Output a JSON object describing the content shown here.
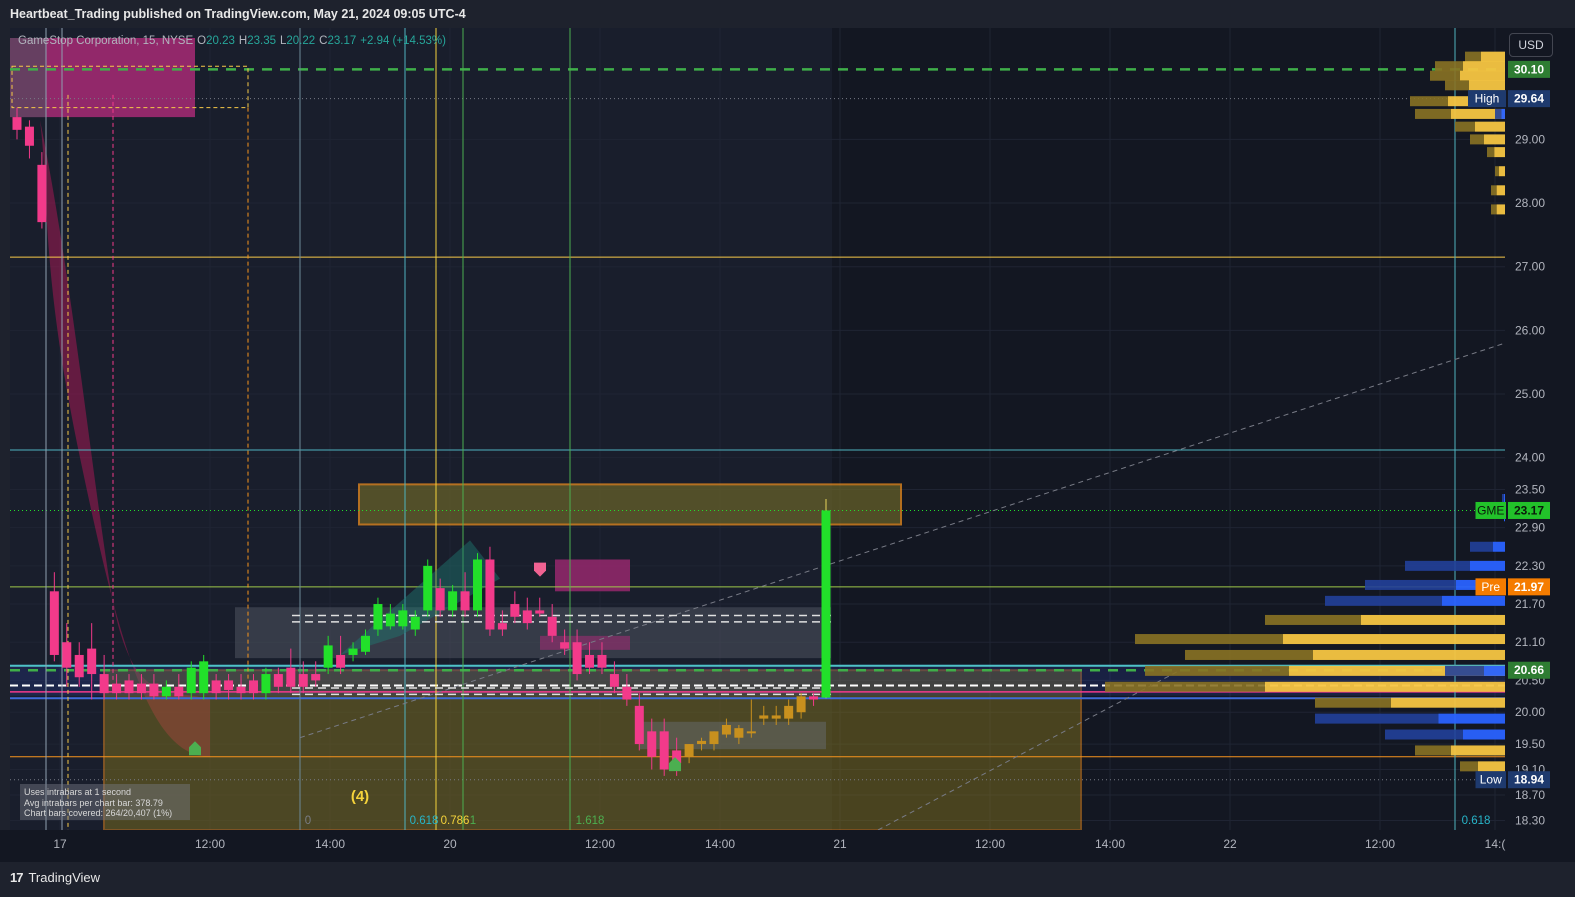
{
  "header": {
    "publisher_line": "Heartbeat_Trading published on TradingView.com, May 21, 2024 09:05 UTC-4"
  },
  "legend": {
    "symbol": "GameStop Corporation, 15, NYSE",
    "open_label": "O",
    "open": "20.23",
    "high_label": "H",
    "high": "23.35",
    "low_label": "L",
    "low": "20.22",
    "close_label": "C",
    "close": "23.17",
    "change": "+2.94 (+14.53%)"
  },
  "currency": "USD",
  "footer": {
    "brand": "TradingView",
    "brand_icon": "tradingview-logo-icon"
  },
  "info_box": {
    "line1": "Uses intrabars at 1 second",
    "line2": "Avg intrabars per chart bar: 378.79",
    "line3": "Chart bars covered: 264/20,407 (1%)"
  },
  "wave_label": "(4)",
  "colors": {
    "background": "#131722",
    "up": "#22e02a",
    "down": "#f23a8a",
    "accent_orange": "#f7941d",
    "volume_gold": "#f5c542",
    "volume_blue": "#2962ff",
    "green_dash": "#3fae49"
  },
  "chart_data": {
    "type": "candlestick",
    "interval": "15",
    "ylim": [
      18.15,
      30.75
    ],
    "y_ticks": [
      29.0,
      28.0,
      27.0,
      26.0,
      25.0,
      24.0,
      23.5,
      22.9,
      22.3,
      21.7,
      21.1,
      20.5,
      20.0,
      19.5,
      19.1,
      18.7,
      18.3
    ],
    "x_ticks": [
      "17",
      "12:00",
      "14:00",
      "20",
      "12:00",
      "14:00",
      "21",
      "12:00",
      "14:00",
      "22",
      "12:00",
      "14:("
    ],
    "price_tags": [
      {
        "label": "",
        "value": "30.10",
        "price": 30.1,
        "bg": "#2e7d32",
        "color": "#ffffff"
      },
      {
        "label": "High",
        "value": "29.64",
        "price": 29.64,
        "bg": "#1e3a6e",
        "color": "#ffffff"
      },
      {
        "label": "GME",
        "value": "23.17",
        "price": 23.17,
        "bg": "#22c22a",
        "color": "#0b1a0b"
      },
      {
        "label": "Pre",
        "value": "21.97",
        "price": 21.97,
        "bg": "#f57c00",
        "color": "#ffffff"
      },
      {
        "label": "",
        "value": "20.66",
        "price": 20.66,
        "bg": "#2e7d32",
        "color": "#ffffff"
      },
      {
        "label": "Low",
        "value": "18.94",
        "price": 18.94,
        "bg": "#1e3a6e",
        "color": "#ffffff"
      }
    ],
    "fib_labels": [
      {
        "text": "0",
        "color": "#7a7d85"
      },
      {
        "text": "0.618",
        "color": "#27b5c9"
      },
      {
        "text": "0.786",
        "color": "#f5d33b"
      },
      {
        "text": "1",
        "color": "#4caf50"
      },
      {
        "text": "1.618",
        "color": "#4caf50"
      },
      {
        "text": "0.618",
        "color": "#27b5c9"
      }
    ],
    "candles": [
      {
        "o": 29.35,
        "h": 29.5,
        "c": 29.15,
        "l": 29.0
      },
      {
        "o": 29.2,
        "h": 29.3,
        "c": 28.9,
        "l": 28.7
      },
      {
        "o": 28.6,
        "h": 28.8,
        "c": 27.7,
        "l": 27.6
      },
      {
        "o": 21.9,
        "h": 22.2,
        "c": 20.9,
        "l": 20.8
      },
      {
        "o": 21.1,
        "h": 21.4,
        "c": 20.7,
        "l": 20.4
      },
      {
        "o": 20.9,
        "h": 21.1,
        "c": 20.55,
        "l": 20.4
      },
      {
        "o": 21.0,
        "h": 21.4,
        "c": 20.6,
        "l": 20.2
      },
      {
        "o": 20.6,
        "h": 20.9,
        "c": 20.3,
        "l": 20.2
      },
      {
        "o": 20.45,
        "h": 20.6,
        "c": 20.3,
        "l": 20.2
      },
      {
        "o": 20.5,
        "h": 20.6,
        "c": 20.3,
        "l": 20.2
      },
      {
        "o": 20.45,
        "h": 20.6,
        "c": 20.3,
        "l": 20.2
      },
      {
        "o": 20.45,
        "h": 20.6,
        "c": 20.25,
        "l": 20.2
      },
      {
        "o": 20.25,
        "h": 20.5,
        "c": 20.4,
        "l": 20.2
      },
      {
        "o": 20.4,
        "h": 20.6,
        "c": 20.25,
        "l": 20.2
      },
      {
        "o": 20.3,
        "h": 20.8,
        "c": 20.7,
        "l": 20.2
      },
      {
        "o": 20.3,
        "h": 20.9,
        "c": 20.8,
        "l": 20.2
      },
      {
        "o": 20.5,
        "h": 20.6,
        "c": 20.3,
        "l": 20.2
      },
      {
        "o": 20.5,
        "h": 20.6,
        "c": 20.35,
        "l": 20.2
      },
      {
        "o": 20.4,
        "h": 20.6,
        "c": 20.3,
        "l": 20.2
      },
      {
        "o": 20.5,
        "h": 20.6,
        "c": 20.3,
        "l": 20.2
      },
      {
        "o": 20.3,
        "h": 20.7,
        "c": 20.6,
        "l": 20.2
      },
      {
        "o": 20.6,
        "h": 20.7,
        "c": 20.4,
        "l": 20.3
      },
      {
        "o": 20.7,
        "h": 21.0,
        "c": 20.4,
        "l": 20.3
      },
      {
        "o": 20.6,
        "h": 20.8,
        "c": 20.4,
        "l": 20.3
      },
      {
        "o": 20.6,
        "h": 20.8,
        "c": 20.5,
        "l": 20.4
      },
      {
        "o": 20.7,
        "h": 21.2,
        "c": 21.05,
        "l": 20.6
      },
      {
        "o": 20.9,
        "h": 21.2,
        "c": 20.7,
        "l": 20.6
      },
      {
        "o": 20.9,
        "h": 21.1,
        "c": 21.0,
        "l": 20.8
      },
      {
        "o": 20.95,
        "h": 21.3,
        "c": 21.2,
        "l": 20.9
      },
      {
        "o": 21.3,
        "h": 21.8,
        "c": 21.7,
        "l": 21.2
      },
      {
        "o": 21.35,
        "h": 21.7,
        "c": 21.55,
        "l": 21.3
      },
      {
        "o": 21.35,
        "h": 21.7,
        "c": 21.6,
        "l": 21.3
      },
      {
        "o": 21.3,
        "h": 21.6,
        "c": 21.5,
        "l": 21.2
      },
      {
        "o": 21.6,
        "h": 22.4,
        "c": 22.3,
        "l": 21.5
      },
      {
        "o": 21.95,
        "h": 22.1,
        "c": 21.6,
        "l": 21.5
      },
      {
        "o": 21.6,
        "h": 22.0,
        "c": 21.9,
        "l": 21.5
      },
      {
        "o": 21.9,
        "h": 22.2,
        "c": 21.6,
        "l": 21.5
      },
      {
        "o": 21.6,
        "h": 22.5,
        "c": 22.4,
        "l": 21.5
      },
      {
        "o": 22.4,
        "h": 22.6,
        "c": 21.3,
        "l": 21.2
      },
      {
        "o": 21.4,
        "h": 21.6,
        "c": 21.3,
        "l": 21.2
      },
      {
        "o": 21.7,
        "h": 21.9,
        "c": 21.5,
        "l": 21.4
      },
      {
        "o": 21.6,
        "h": 21.8,
        "c": 21.4,
        "l": 21.3
      },
      {
        "o": 21.6,
        "h": 21.8,
        "c": 21.55,
        "l": 21.5
      },
      {
        "o": 21.5,
        "h": 21.7,
        "c": 21.2,
        "l": 21.1
      },
      {
        "o": 21.1,
        "h": 21.3,
        "c": 21.0,
        "l": 20.9
      },
      {
        "o": 21.1,
        "h": 21.3,
        "c": 20.6,
        "l": 20.5
      },
      {
        "o": 20.9,
        "h": 21.1,
        "c": 20.7,
        "l": 20.6
      },
      {
        "o": 20.9,
        "h": 21.1,
        "c": 20.7,
        "l": 20.6
      },
      {
        "o": 20.6,
        "h": 20.8,
        "c": 20.4,
        "l": 20.3
      },
      {
        "o": 20.4,
        "h": 20.6,
        "c": 20.2,
        "l": 20.1
      },
      {
        "o": 20.1,
        "h": 20.3,
        "c": 19.5,
        "l": 19.4
      },
      {
        "o": 19.7,
        "h": 19.9,
        "c": 19.3,
        "l": 19.1
      },
      {
        "o": 19.7,
        "h": 19.9,
        "c": 19.1,
        "l": 19.0
      },
      {
        "o": 19.4,
        "h": 19.6,
        "c": 19.2,
        "l": 19.0
      },
      {
        "o": 19.3,
        "h": 19.5,
        "c": 19.5,
        "l": 19.2
      },
      {
        "o": 19.5,
        "h": 19.6,
        "c": 19.55,
        "l": 19.4
      },
      {
        "o": 19.5,
        "h": 19.7,
        "c": 19.7,
        "l": 19.4
      },
      {
        "o": 19.65,
        "h": 19.9,
        "c": 19.8,
        "l": 19.6
      },
      {
        "o": 19.6,
        "h": 19.8,
        "c": 19.75,
        "l": 19.5
      },
      {
        "o": 19.7,
        "h": 20.2,
        "c": 19.7,
        "l": 19.6
      },
      {
        "o": 19.9,
        "h": 20.1,
        "c": 19.95,
        "l": 19.8
      },
      {
        "o": 19.9,
        "h": 20.1,
        "c": 19.95,
        "l": 19.8
      },
      {
        "o": 19.9,
        "h": 20.2,
        "c": 20.1,
        "l": 19.8
      },
      {
        "o": 20.0,
        "h": 20.3,
        "c": 20.25,
        "l": 19.9
      },
      {
        "o": 20.25,
        "h": 20.3,
        "c": 20.2,
        "l": 20.1
      },
      {
        "o": 20.23,
        "h": 23.35,
        "c": 23.17,
        "l": 20.22
      }
    ],
    "volume_profile": [
      {
        "price": 30.3,
        "gold": 40,
        "blue": 0
      },
      {
        "price": 30.15,
        "gold": 70,
        "blue": 0
      },
      {
        "price": 30.0,
        "gold": 75,
        "blue": 0
      },
      {
        "price": 29.85,
        "gold": 60,
        "blue": 0
      },
      {
        "price": 29.6,
        "gold": 95,
        "blue": 20
      },
      {
        "price": 29.4,
        "gold": 90,
        "blue": 10
      },
      {
        "price": 29.2,
        "gold": 50,
        "blue": 0
      },
      {
        "price": 29.0,
        "gold": 35,
        "blue": 0
      },
      {
        "price": 28.8,
        "gold": 18,
        "blue": 0
      },
      {
        "price": 28.5,
        "gold": 10,
        "blue": 0
      },
      {
        "price": 28.2,
        "gold": 14,
        "blue": 0
      },
      {
        "price": 27.9,
        "gold": 14,
        "blue": 0
      },
      {
        "price": 23.35,
        "gold": 0,
        "blue": 3
      },
      {
        "price": 22.6,
        "gold": 0,
        "blue": 35
      },
      {
        "price": 22.3,
        "gold": 0,
        "blue": 100
      },
      {
        "price": 22.0,
        "gold": 0,
        "blue": 140
      },
      {
        "price": 21.75,
        "gold": 0,
        "blue": 180
      },
      {
        "price": 21.45,
        "gold": 240,
        "blue": 0
      },
      {
        "price": 21.15,
        "gold": 370,
        "blue": 0
      },
      {
        "price": 20.9,
        "gold": 320,
        "blue": 0
      },
      {
        "price": 20.65,
        "gold": 360,
        "blue": 60
      },
      {
        "price": 20.4,
        "gold": 400,
        "blue": 0
      },
      {
        "price": 20.15,
        "gold": 190,
        "blue": 0
      },
      {
        "price": 19.9,
        "gold": 0,
        "blue": 190
      },
      {
        "price": 19.65,
        "gold": 0,
        "blue": 120
      },
      {
        "price": 19.4,
        "gold": 90,
        "blue": 0
      },
      {
        "price": 19.15,
        "gold": 45,
        "blue": 0
      },
      {
        "price": 18.95,
        "gold": 25,
        "blue": 0
      }
    ]
  }
}
